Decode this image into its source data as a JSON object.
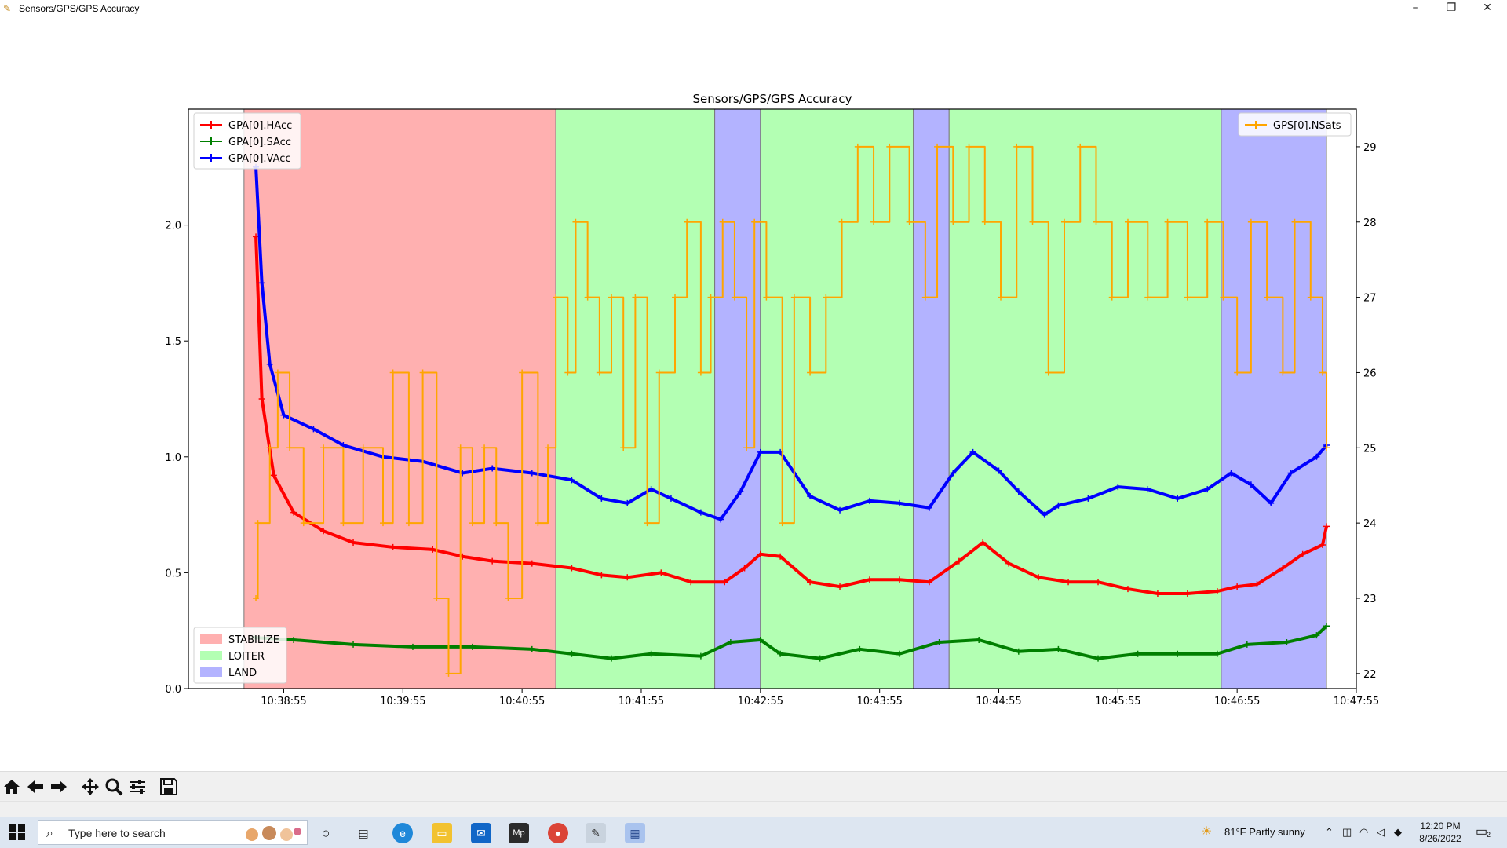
{
  "window": {
    "title": "Sensors/GPS/GPS Accuracy",
    "minimize": "–",
    "restore": "❐",
    "close": "✕"
  },
  "toolbar": {
    "icons": [
      "home-icon",
      "back-arrow-icon",
      "forward-arrow-icon",
      "pan-icon",
      "zoom-icon",
      "configure-subplots-icon",
      "save-icon"
    ]
  },
  "taskbar": {
    "search_placeholder": "Type here to search",
    "weather": "81°F  Partly sunny",
    "time": "12:20 PM",
    "date": "8/26/2022",
    "notification_count": "2",
    "apps": [
      "cortana-icon",
      "task-view-icon",
      "edge-icon",
      "file-explorer-icon",
      "mail-icon",
      "mission-planner-icon",
      "chrome-icon",
      "app-icon",
      "figure-window-icon"
    ]
  },
  "chart_data": {
    "type": "line",
    "title": "Sensors/GPS/GPS Accuracy",
    "x_ticks": [
      "10:38:55",
      "10:39:55",
      "10:40:55",
      "10:41:55",
      "10:42:55",
      "10:43:55",
      "10:44:55",
      "10:45:55",
      "10:46:55",
      "10:47:55"
    ],
    "xlim": [
      "10:38:07",
      "10:47:55"
    ],
    "left_axis": {
      "ylim": [
        0,
        2.5
      ],
      "ticks": [
        "0.0",
        "0.5",
        "1.0",
        "1.5",
        "2.0"
      ]
    },
    "right_axis": {
      "ylim": [
        21.8,
        29.5
      ],
      "ticks": [
        "22",
        "23",
        "24",
        "25",
        "26",
        "27",
        "28",
        "29"
      ]
    },
    "mode_regions": [
      {
        "mode": "STABILIZE",
        "start": "10:38:35",
        "end": "10:41:12",
        "color": "#ffb0b0"
      },
      {
        "mode": "LOITER",
        "start": "10:41:12",
        "end": "10:42:32",
        "color": "#b3ffb3"
      },
      {
        "mode": "LAND",
        "start": "10:42:32",
        "end": "10:42:55",
        "color": "#b3b3ff"
      },
      {
        "mode": "LOITER",
        "start": "10:42:55",
        "end": "10:44:12",
        "color": "#b3ffb3"
      },
      {
        "mode": "LAND",
        "start": "10:44:12",
        "end": "10:44:30",
        "color": "#b3b3ff"
      },
      {
        "mode": "LOITER",
        "start": "10:44:30",
        "end": "10:46:47",
        "color": "#b3ffb3"
      },
      {
        "mode": "LAND",
        "start": "10:46:47",
        "end": "10:47:40",
        "color": "#b3b3ff"
      }
    ],
    "mode_legend": [
      {
        "label": "STABILIZE",
        "color": "#ffb0b0"
      },
      {
        "label": "LOITER",
        "color": "#b3ffb3"
      },
      {
        "label": "LAND",
        "color": "#b3b3ff"
      }
    ],
    "series": [
      {
        "name": "GPA[0].HAcc",
        "axis": "left",
        "color": "#ff0000",
        "points": [
          [
            "10:38:41",
            1.95
          ],
          [
            "10:38:44",
            1.25
          ],
          [
            "10:38:50",
            0.92
          ],
          [
            "10:39:00",
            0.76
          ],
          [
            "10:39:15",
            0.68
          ],
          [
            "10:39:30",
            0.63
          ],
          [
            "10:39:50",
            0.61
          ],
          [
            "10:40:10",
            0.6
          ],
          [
            "10:40:25",
            0.57
          ],
          [
            "10:40:40",
            0.55
          ],
          [
            "10:41:00",
            0.54
          ],
          [
            "10:41:20",
            0.52
          ],
          [
            "10:41:35",
            0.49
          ],
          [
            "10:41:48",
            0.48
          ],
          [
            "10:42:05",
            0.5
          ],
          [
            "10:42:20",
            0.46
          ],
          [
            "10:42:37",
            0.46
          ],
          [
            "10:42:47",
            0.52
          ],
          [
            "10:42:55",
            0.58
          ],
          [
            "10:43:05",
            0.57
          ],
          [
            "10:43:20",
            0.46
          ],
          [
            "10:43:35",
            0.44
          ],
          [
            "10:43:50",
            0.47
          ],
          [
            "10:44:05",
            0.47
          ],
          [
            "10:44:20",
            0.46
          ],
          [
            "10:44:35",
            0.55
          ],
          [
            "10:44:47",
            0.63
          ],
          [
            "10:45:00",
            0.54
          ],
          [
            "10:45:15",
            0.48
          ],
          [
            "10:45:30",
            0.46
          ],
          [
            "10:45:45",
            0.46
          ],
          [
            "10:46:00",
            0.43
          ],
          [
            "10:46:15",
            0.41
          ],
          [
            "10:46:30",
            0.41
          ],
          [
            "10:46:45",
            0.42
          ],
          [
            "10:46:55",
            0.44
          ],
          [
            "10:47:05",
            0.45
          ],
          [
            "10:47:18",
            0.52
          ],
          [
            "10:47:28",
            0.58
          ],
          [
            "10:47:38",
            0.62
          ],
          [
            "10:47:40",
            0.7
          ]
        ]
      },
      {
        "name": "GPA[0].SAcc",
        "axis": "left",
        "color": "#007f00",
        "points": [
          [
            "10:38:40",
            0.22
          ],
          [
            "10:39:00",
            0.21
          ],
          [
            "10:39:30",
            0.19
          ],
          [
            "10:40:00",
            0.18
          ],
          [
            "10:40:30",
            0.18
          ],
          [
            "10:41:00",
            0.17
          ],
          [
            "10:41:20",
            0.15
          ],
          [
            "10:41:40",
            0.13
          ],
          [
            "10:42:00",
            0.15
          ],
          [
            "10:42:25",
            0.14
          ],
          [
            "10:42:40",
            0.2
          ],
          [
            "10:42:55",
            0.21
          ],
          [
            "10:43:05",
            0.15
          ],
          [
            "10:43:25",
            0.13
          ],
          [
            "10:43:45",
            0.17
          ],
          [
            "10:44:05",
            0.15
          ],
          [
            "10:44:25",
            0.2
          ],
          [
            "10:44:45",
            0.21
          ],
          [
            "10:45:05",
            0.16
          ],
          [
            "10:45:25",
            0.17
          ],
          [
            "10:45:45",
            0.13
          ],
          [
            "10:46:05",
            0.15
          ],
          [
            "10:46:25",
            0.15
          ],
          [
            "10:46:45",
            0.15
          ],
          [
            "10:47:00",
            0.19
          ],
          [
            "10:47:20",
            0.2
          ],
          [
            "10:47:35",
            0.23
          ],
          [
            "10:47:40",
            0.27
          ]
        ]
      },
      {
        "name": "GPA[0].VAcc",
        "axis": "left",
        "color": "#0000ff",
        "points": [
          [
            "10:38:41",
            2.25
          ],
          [
            "10:38:44",
            1.75
          ],
          [
            "10:38:48",
            1.4
          ],
          [
            "10:38:55",
            1.18
          ],
          [
            "10:39:10",
            1.12
          ],
          [
            "10:39:25",
            1.05
          ],
          [
            "10:39:45",
            1.0
          ],
          [
            "10:40:05",
            0.98
          ],
          [
            "10:40:25",
            0.93
          ],
          [
            "10:40:40",
            0.95
          ],
          [
            "10:41:00",
            0.93
          ],
          [
            "10:41:20",
            0.9
          ],
          [
            "10:41:35",
            0.82
          ],
          [
            "10:41:48",
            0.8
          ],
          [
            "10:42:00",
            0.86
          ],
          [
            "10:42:10",
            0.82
          ],
          [
            "10:42:25",
            0.76
          ],
          [
            "10:42:35",
            0.73
          ],
          [
            "10:42:45",
            0.85
          ],
          [
            "10:42:55",
            1.02
          ],
          [
            "10:43:05",
            1.02
          ],
          [
            "10:43:20",
            0.83
          ],
          [
            "10:43:35",
            0.77
          ],
          [
            "10:43:50",
            0.81
          ],
          [
            "10:44:05",
            0.8
          ],
          [
            "10:44:20",
            0.78
          ],
          [
            "10:44:32",
            0.93
          ],
          [
            "10:44:42",
            1.02
          ],
          [
            "10:44:55",
            0.94
          ],
          [
            "10:45:05",
            0.85
          ],
          [
            "10:45:18",
            0.75
          ],
          [
            "10:45:25",
            0.79
          ],
          [
            "10:45:40",
            0.82
          ],
          [
            "10:45:55",
            0.87
          ],
          [
            "10:46:10",
            0.86
          ],
          [
            "10:46:25",
            0.82
          ],
          [
            "10:46:40",
            0.86
          ],
          [
            "10:46:52",
            0.93
          ],
          [
            "10:47:02",
            0.88
          ],
          [
            "10:47:12",
            0.8
          ],
          [
            "10:47:22",
            0.93
          ],
          [
            "10:47:35",
            1.0
          ],
          [
            "10:47:40",
            1.05
          ]
        ]
      },
      {
        "name": "GPS[0].NSats",
        "axis": "right",
        "color": "#ffa500",
        "points": [
          [
            "10:38:41",
            23
          ],
          [
            "10:38:42",
            24
          ],
          [
            "10:38:48",
            25
          ],
          [
            "10:38:52",
            26
          ],
          [
            "10:38:58",
            25
          ],
          [
            "10:39:05",
            24
          ],
          [
            "10:39:15",
            25
          ],
          [
            "10:39:25",
            24
          ],
          [
            "10:39:35",
            25
          ],
          [
            "10:39:45",
            24
          ],
          [
            "10:39:50",
            26
          ],
          [
            "10:39:58",
            24
          ],
          [
            "10:40:05",
            26
          ],
          [
            "10:40:12",
            23
          ],
          [
            "10:40:18",
            22
          ],
          [
            "10:40:24",
            25
          ],
          [
            "10:40:30",
            24
          ],
          [
            "10:40:36",
            25
          ],
          [
            "10:40:42",
            24
          ],
          [
            "10:40:48",
            23
          ],
          [
            "10:40:55",
            26
          ],
          [
            "10:41:03",
            24
          ],
          [
            "10:41:08",
            25
          ],
          [
            "10:41:12",
            27
          ],
          [
            "10:41:18",
            26
          ],
          [
            "10:41:22",
            28
          ],
          [
            "10:41:28",
            27
          ],
          [
            "10:41:34",
            26
          ],
          [
            "10:41:40",
            27
          ],
          [
            "10:41:46",
            25
          ],
          [
            "10:41:52",
            27
          ],
          [
            "10:41:58",
            24
          ],
          [
            "10:42:04",
            26
          ],
          [
            "10:42:12",
            27
          ],
          [
            "10:42:18",
            28
          ],
          [
            "10:42:25",
            26
          ],
          [
            "10:42:30",
            27
          ],
          [
            "10:42:36",
            28
          ],
          [
            "10:42:42",
            27
          ],
          [
            "10:42:48",
            25
          ],
          [
            "10:42:52",
            28
          ],
          [
            "10:42:58",
            27
          ],
          [
            "10:43:06",
            24
          ],
          [
            "10:43:12",
            27
          ],
          [
            "10:43:20",
            26
          ],
          [
            "10:43:28",
            27
          ],
          [
            "10:43:36",
            28
          ],
          [
            "10:43:44",
            29
          ],
          [
            "10:43:52",
            28
          ],
          [
            "10:44:00",
            29
          ],
          [
            "10:44:10",
            28
          ],
          [
            "10:44:18",
            27
          ],
          [
            "10:44:24",
            29
          ],
          [
            "10:44:32",
            28
          ],
          [
            "10:44:40",
            29
          ],
          [
            "10:44:48",
            28
          ],
          [
            "10:44:56",
            27
          ],
          [
            "10:45:04",
            29
          ],
          [
            "10:45:12",
            28
          ],
          [
            "10:45:20",
            26
          ],
          [
            "10:45:28",
            28
          ],
          [
            "10:45:36",
            29
          ],
          [
            "10:45:44",
            28
          ],
          [
            "10:45:52",
            27
          ],
          [
            "10:46:00",
            28
          ],
          [
            "10:46:10",
            27
          ],
          [
            "10:46:20",
            28
          ],
          [
            "10:46:30",
            27
          ],
          [
            "10:46:40",
            28
          ],
          [
            "10:46:48",
            27
          ],
          [
            "10:46:55",
            26
          ],
          [
            "10:47:02",
            28
          ],
          [
            "10:47:10",
            27
          ],
          [
            "10:47:18",
            26
          ],
          [
            "10:47:24",
            28
          ],
          [
            "10:47:32",
            27
          ],
          [
            "10:47:38",
            26
          ],
          [
            "10:47:40",
            25
          ]
        ]
      }
    ],
    "left_legend": [
      "GPA[0].HAcc",
      "GPA[0].SAcc",
      "GPA[0].VAcc"
    ],
    "right_legend": [
      "GPS[0].NSats"
    ],
    "legend_placement": {
      "series_left": "upper-left",
      "series_right": "upper-right",
      "modes": "lower-left"
    },
    "grid": false
  }
}
